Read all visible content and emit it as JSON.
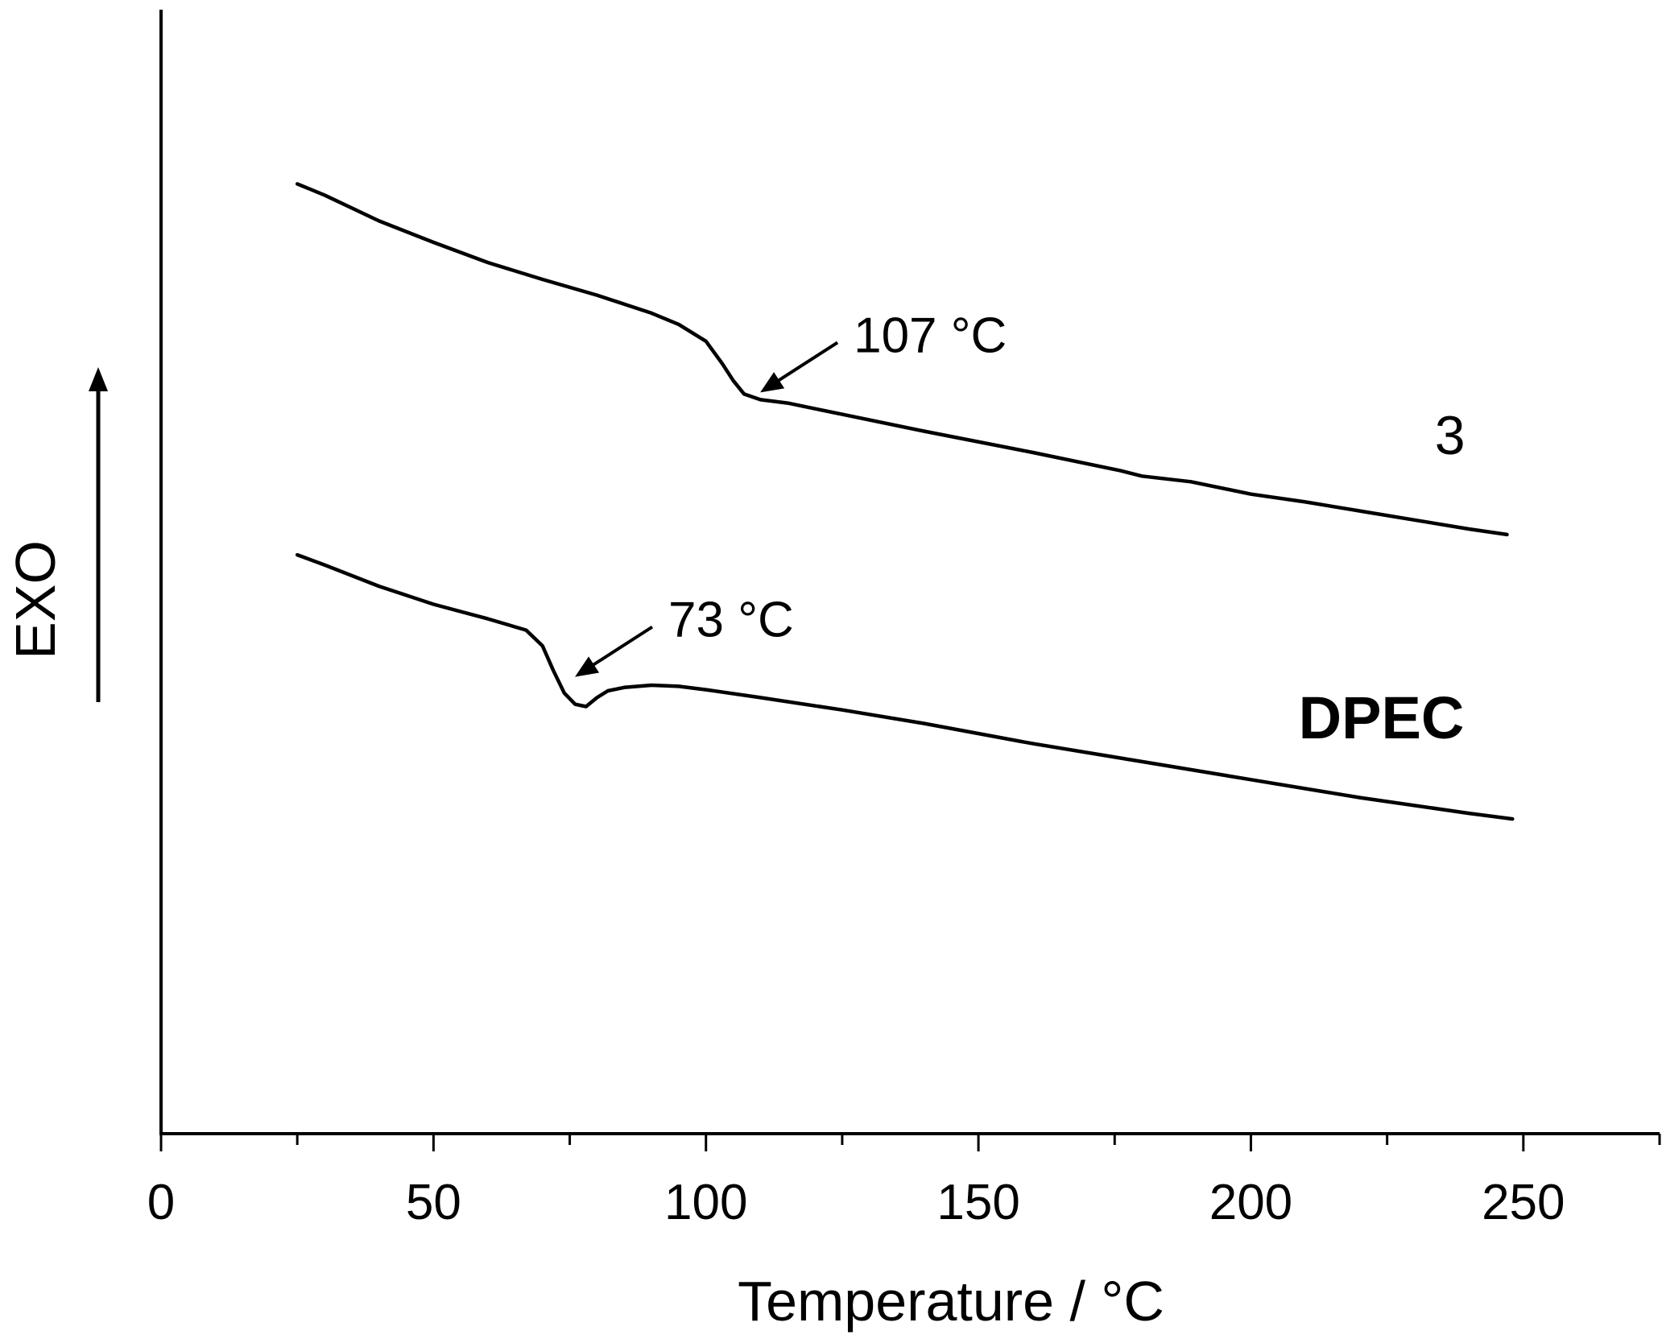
{
  "chart_data": {
    "type": "line",
    "xlabel": "Temperature / °C",
    "ylabel": "EXO",
    "xlim": [
      0,
      275
    ],
    "ylim": [
      0,
      100
    ],
    "x_ticks": [
      0,
      50,
      100,
      150,
      200,
      250
    ],
    "x_minor_ticks": [
      25,
      75,
      125,
      175,
      225,
      275
    ],
    "grid": false,
    "y_axis_arrow_label": "EXO",
    "series": [
      {
        "name": "3",
        "label_bold": false,
        "x": [
          25,
          30,
          40,
          50,
          60,
          70,
          80,
          90,
          95,
          100,
          103,
          105,
          107,
          110,
          115,
          125,
          140,
          160,
          176,
          180,
          189,
          200,
          210,
          220,
          230,
          240,
          247
        ],
        "y": [
          84.5,
          83.5,
          81.2,
          79.3,
          77.5,
          76.0,
          74.6,
          73.0,
          72.0,
          70.5,
          68.5,
          67.0,
          65.8,
          65.3,
          65.0,
          64.0,
          62.5,
          60.6,
          59.0,
          58.5,
          58.0,
          56.9,
          56.2,
          55.4,
          54.6,
          53.8,
          53.3
        ]
      },
      {
        "name": "DPEC",
        "label_bold": true,
        "x": [
          25,
          30,
          40,
          50,
          60,
          67,
          70,
          72,
          74,
          76,
          78,
          80,
          82,
          85,
          90,
          95,
          100,
          110,
          125,
          140,
          160,
          180,
          200,
          220,
          240,
          248
        ],
        "y": [
          51.5,
          50.6,
          48.7,
          47.1,
          45.8,
          44.8,
          43.4,
          41.2,
          39.2,
          38.2,
          38.0,
          38.8,
          39.4,
          39.7,
          39.9,
          39.8,
          39.5,
          38.8,
          37.7,
          36.5,
          34.7,
          33.1,
          31.5,
          29.9,
          28.5,
          28.0
        ]
      }
    ],
    "annotations": [
      {
        "text": "107 °C",
        "target_series": "3",
        "target_x": 107,
        "target_y": 65.8
      },
      {
        "text": "73 °C",
        "target_series": "DPEC",
        "target_x": 73,
        "target_y": 40.5
      }
    ]
  }
}
